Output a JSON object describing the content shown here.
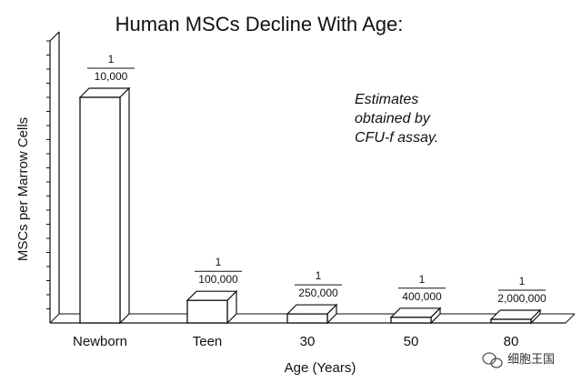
{
  "chart_data": {
    "type": "bar",
    "title": "Human MSCs Decline With Age:",
    "xlabel": "Age (Years)",
    "ylabel": "MSCs per Marrow Cells",
    "categories": [
      "Newborn",
      "Teen",
      "30",
      "50",
      "80"
    ],
    "values": [
      0.0001,
      1e-05,
      4e-06,
      2.5e-06,
      5e-07
    ],
    "data_labels": [
      {
        "numerator": "1",
        "denominator": "10,000"
      },
      {
        "numerator": "1",
        "denominator": "100,000"
      },
      {
        "numerator": "1",
        "denominator": "250,000"
      },
      {
        "numerator": "1",
        "denominator": "400,000"
      },
      {
        "numerator": "1",
        "denominator": "2,000,000"
      }
    ],
    "annotation": [
      "Estimates",
      "obtained by",
      "CFU-f assay."
    ],
    "ylim": [
      0,
      0.000125
    ],
    "grid": false,
    "legend": "none",
    "bar_color": "#ffffff",
    "edge_color": "#111111"
  },
  "watermark": {
    "icon": "wechat-icon",
    "text": "细胞王国"
  }
}
